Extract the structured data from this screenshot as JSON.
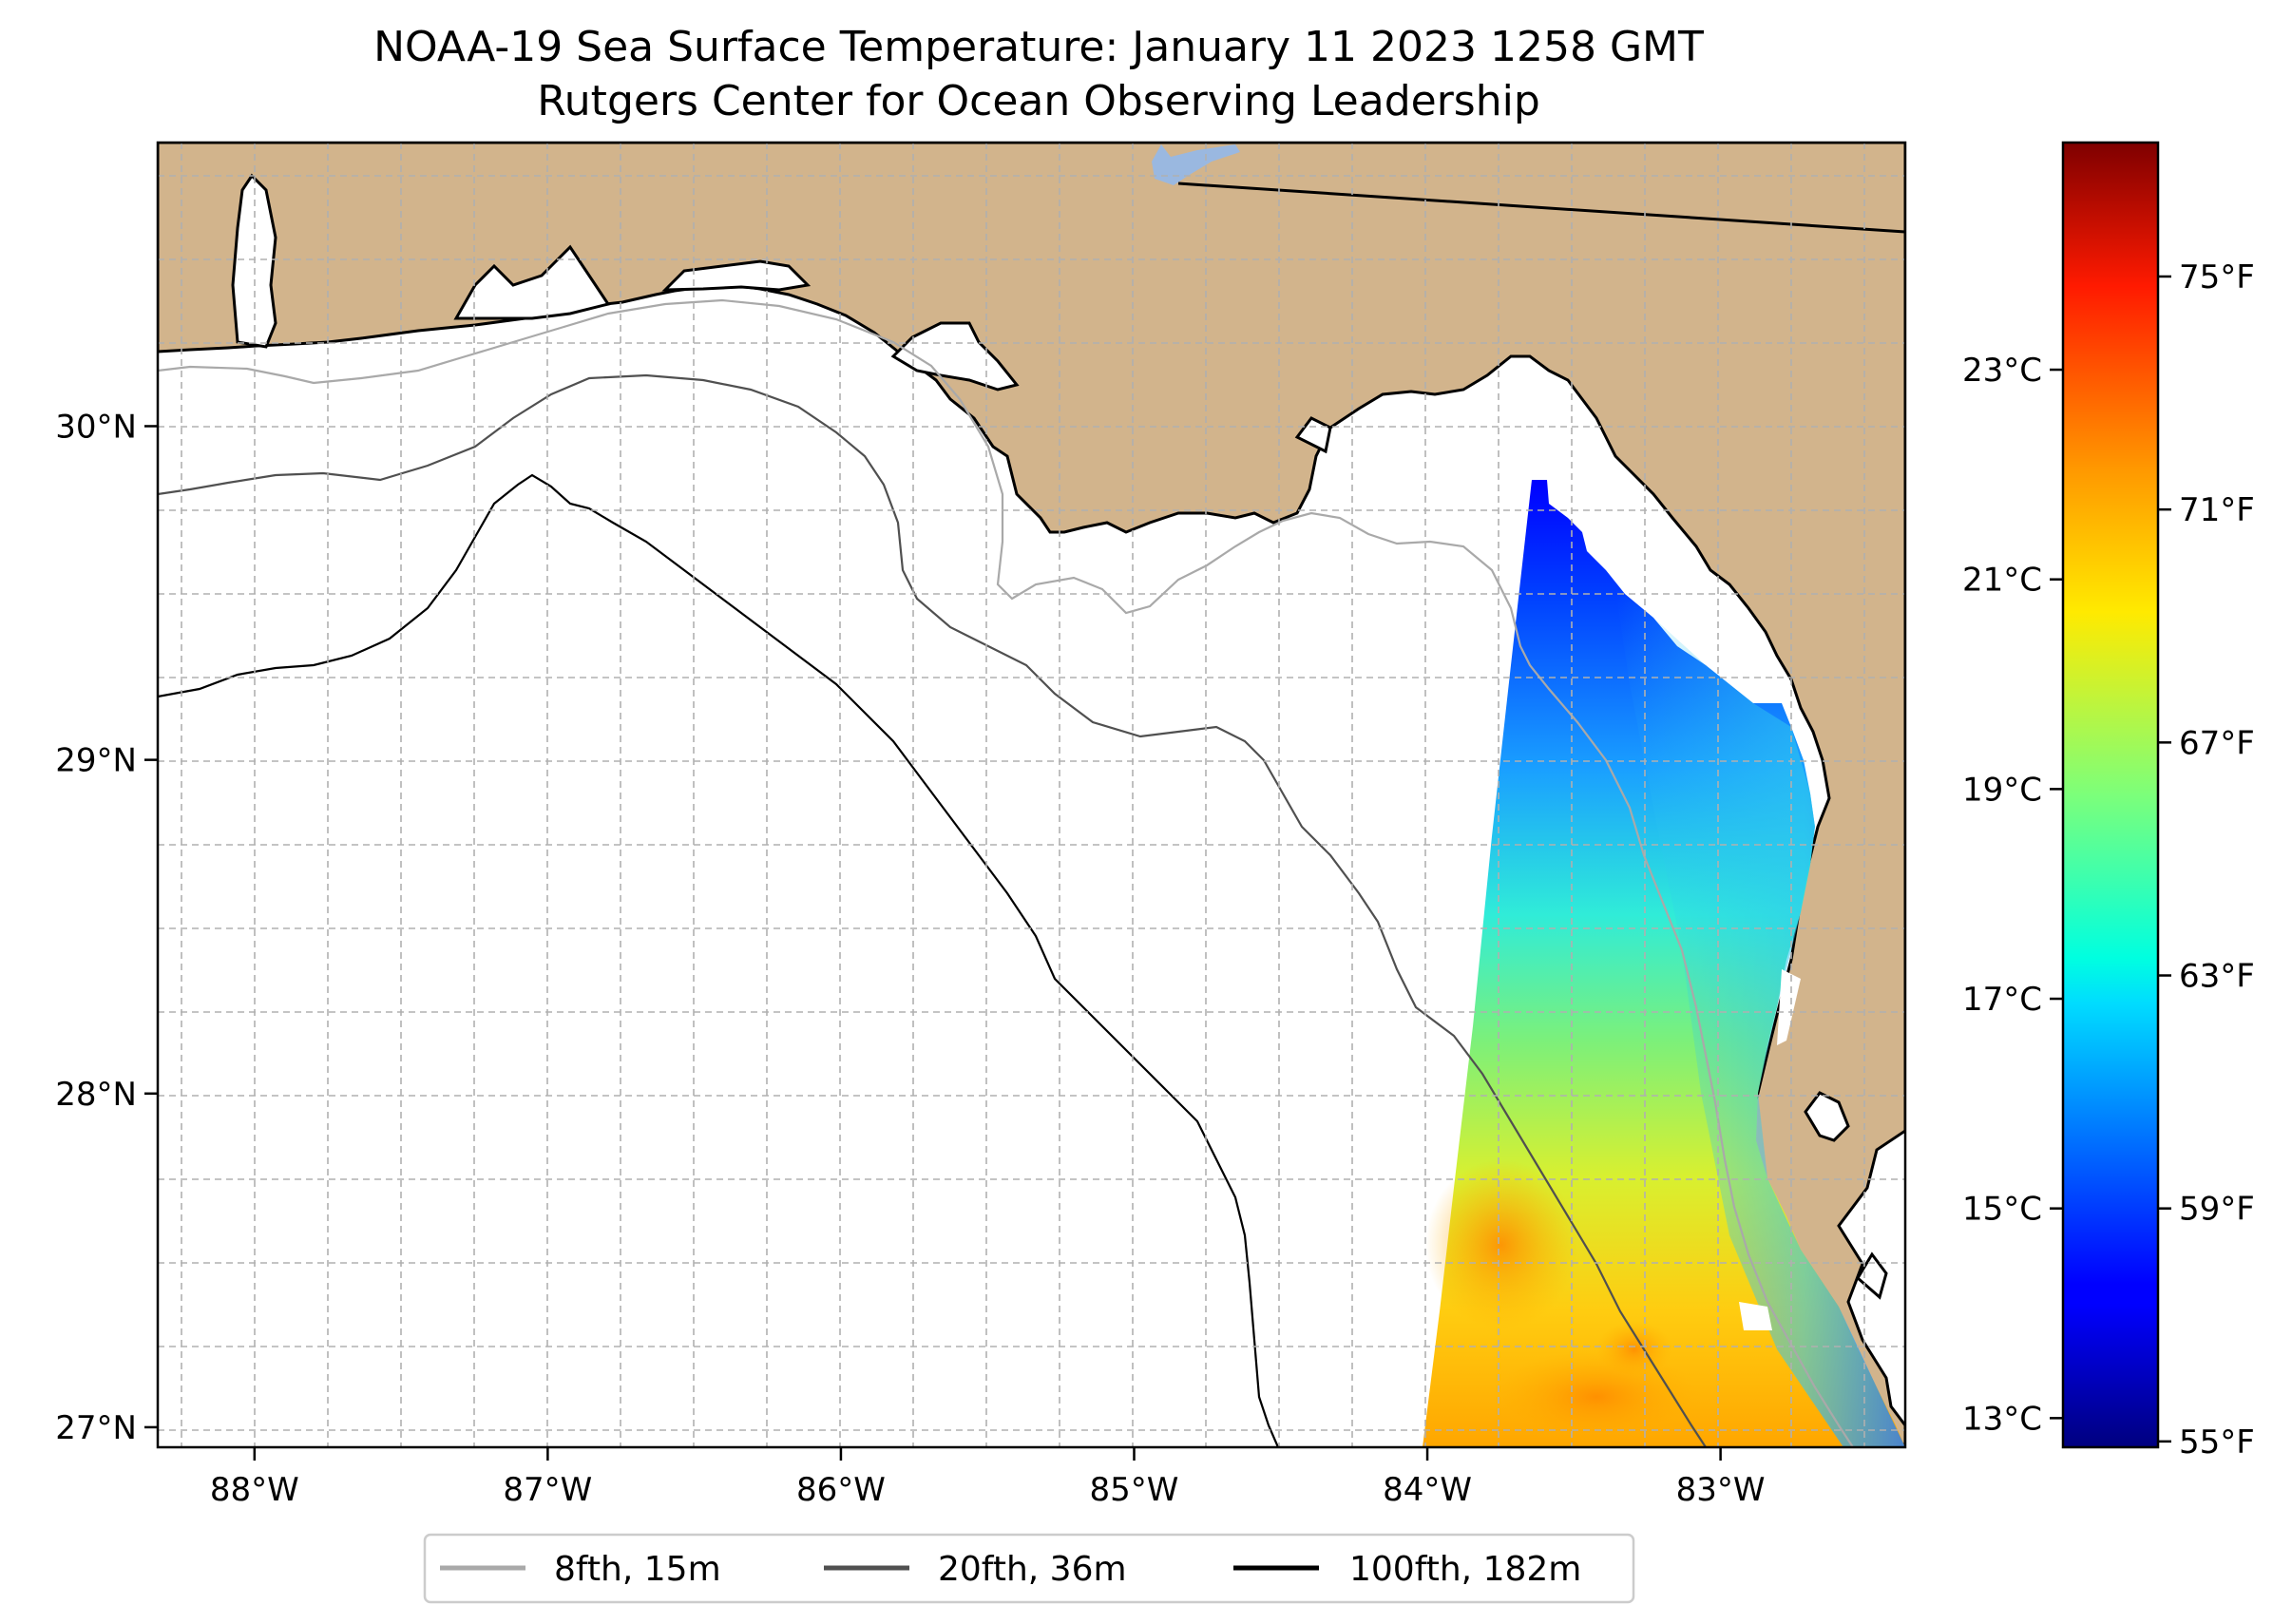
{
  "title": {
    "line1": "NOAA-19 Sea Surface Temperature: January 11 2023 1258 GMT",
    "line2": "Rutgers Center for Ocean Observing Leadership"
  },
  "map": {
    "lon_range": [
      -88.33,
      -82.37
    ],
    "lat_range": [
      26.94,
      30.85
    ],
    "lon_ticks": [
      {
        "value": -88,
        "label": "88°W"
      },
      {
        "value": -87,
        "label": "87°W"
      },
      {
        "value": -86,
        "label": "86°W"
      },
      {
        "value": -85,
        "label": "85°W"
      },
      {
        "value": -84,
        "label": "84°W"
      },
      {
        "value": -83,
        "label": "83°W"
      }
    ],
    "lat_ticks": [
      {
        "value": 30,
        "label": "30°N"
      },
      {
        "value": 29,
        "label": "29°N"
      },
      {
        "value": 28,
        "label": "28°N"
      },
      {
        "value": 27,
        "label": "27°N"
      }
    ],
    "colors": {
      "land": "#d2b48c",
      "ocean": "#ffffff",
      "lake": "#9ab8e0",
      "grid": "#b0b0b0"
    }
  },
  "colorbar": {
    "colormap": "jet",
    "celsius_ticks": [
      {
        "value": 13,
        "label": "13°C"
      },
      {
        "value": 15,
        "label": "15°C"
      },
      {
        "value": 17,
        "label": "17°C"
      },
      {
        "value": 19,
        "label": "19°C"
      },
      {
        "value": 21,
        "label": "21°C"
      },
      {
        "value": 23,
        "label": "23°C"
      }
    ],
    "fahrenheit_ticks": [
      {
        "value": 55,
        "label": "55°F"
      },
      {
        "value": 59,
        "label": "59°F"
      },
      {
        "value": 63,
        "label": "63°F"
      },
      {
        "value": 67,
        "label": "67°F"
      },
      {
        "value": 71,
        "label": "71°F"
      },
      {
        "value": 75,
        "label": "75°F"
      }
    ],
    "range_f": [
      54.9,
      77.3
    ]
  },
  "legend": {
    "items": [
      {
        "label": "8fth, 15m",
        "color": "#a9a9a9"
      },
      {
        "label": "20fth, 36m",
        "color": "#505050"
      },
      {
        "label": "100fth, 182m",
        "color": "#000000"
      }
    ]
  }
}
